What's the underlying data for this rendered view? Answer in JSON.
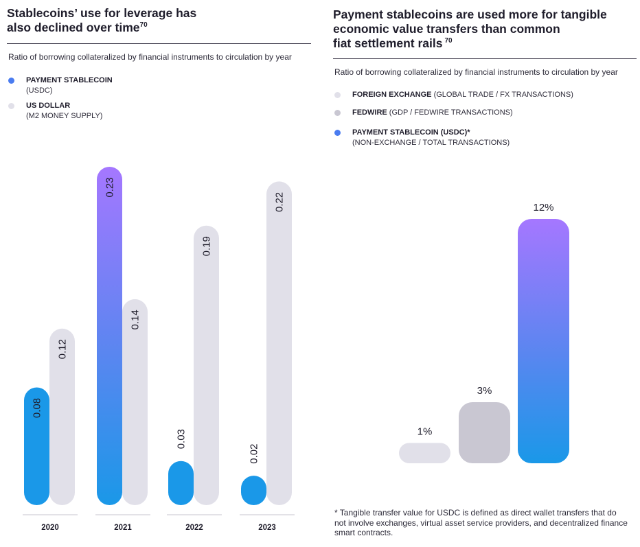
{
  "colors": {
    "usdc_top": "#a577ff",
    "usdc_bottom": "#1a98e8",
    "usdc_solid": "#1a98e8",
    "usd_light": "#e1e0e9",
    "fedwire": "#c9c7d2",
    "legend_blue": "#4a7cf0",
    "axis": "#c7c6cf"
  },
  "left": {
    "title_line1": "Stablecoins’ use for leverage has",
    "title_line2": "also declined over time",
    "title_sup": "70",
    "subtitle": "Ratio of borrowing collateralized by financial instruments to circulation by year",
    "legend": [
      {
        "label": "PAYMENT STABLECOIN",
        "sub": "(USDC)",
        "dot": "legend-blue"
      },
      {
        "label": "US DOLLAR",
        "sub": "(M2 MONEY SUPPLY)",
        "dot": "light"
      }
    ]
  },
  "right": {
    "title_line1": "Payment stablecoins are used more for tangible",
    "title_line2": "economic value transfers than common",
    "title_line3": "fiat settlement rails",
    "title_sup": "70",
    "subtitle": "Ratio of borrowing collateralized by financial instruments to circulation by year",
    "legend": [
      {
        "label": "FOREIGN EXCHANGE",
        "sub": " (GLOBAL TRADE / FX TRANSACTIONS)"
      },
      {
        "label": "FEDWIRE",
        "sub": " (GDP / FEDWIRE TRANSACTIONS)"
      },
      {
        "label": "PAYMENT STABLECOIN (USDC)*",
        "sub": "(NON-EXCHANGE / TOTAL TRANSACTIONS)"
      }
    ],
    "footnote": "* Tangible transfer value for USDC is defined as direct wallet transfers that do not involve exchanges, virtual asset service providers, and decentralized finance smart contracts."
  },
  "chart_data": [
    {
      "type": "bar",
      "title": "Stablecoins’ use for leverage has also declined over time",
      "categories": [
        "2020",
        "2021",
        "2022",
        "2023"
      ],
      "series": [
        {
          "name": "PAYMENT STABLECOIN (USDC)",
          "values": [
            0.08,
            0.23,
            0.03,
            0.02
          ],
          "labels": [
            "0.08",
            "0.23",
            "0.03",
            "0.02"
          ]
        },
        {
          "name": "US DOLLAR (M2 MONEY SUPPLY)",
          "values": [
            0.12,
            0.14,
            0.19,
            0.22
          ],
          "labels": [
            "0.12",
            "0.14",
            "0.19",
            "0.22"
          ]
        }
      ],
      "ylim": [
        0,
        0.23
      ]
    },
    {
      "type": "bar",
      "title": "Payment stablecoins are used more for tangible economic value transfers than common fiat settlement rails",
      "categories": [
        "FOREIGN EXCHANGE",
        "FEDWIRE",
        "PAYMENT STABLECOIN (USDC)*"
      ],
      "values": [
        1,
        3,
        12
      ],
      "labels": [
        "1%",
        "3%",
        "12%"
      ],
      "ylim": [
        0,
        12
      ]
    }
  ]
}
